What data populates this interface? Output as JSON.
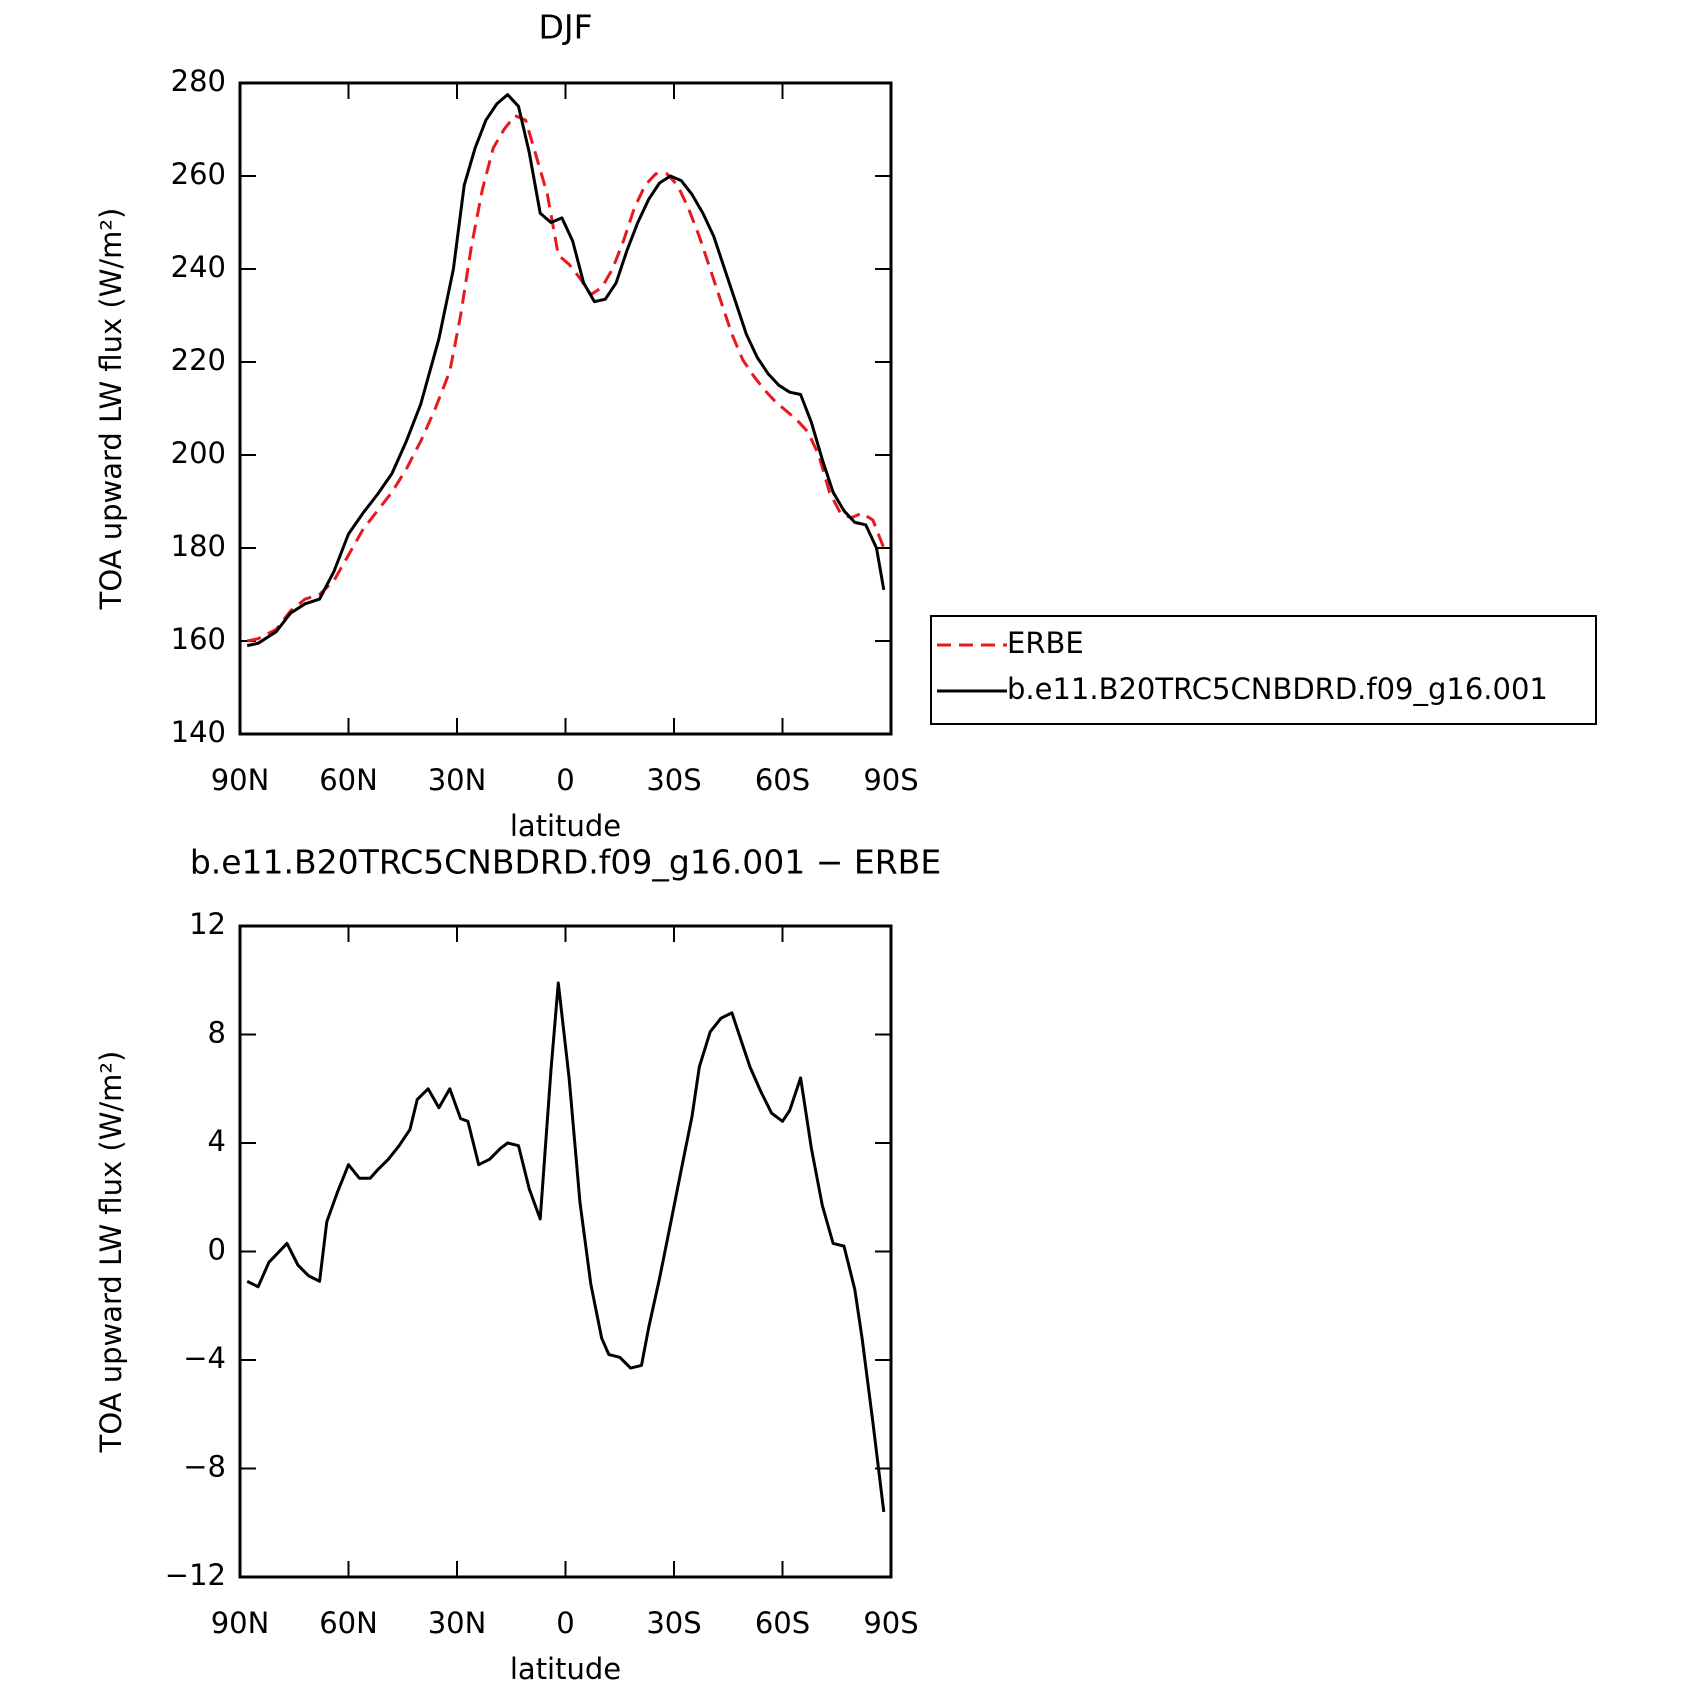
{
  "chart_data": [
    {
      "type": "line",
      "title": "DJF",
      "xlabel": "latitude",
      "ylabel": "TOA upward LW flux (W/m²)",
      "xlim": [
        90,
        -90
      ],
      "xticks": [
        {
          "value": 90,
          "label": "90N"
        },
        {
          "value": 60,
          "label": "60N"
        },
        {
          "value": 30,
          "label": "30N"
        },
        0,
        {
          "value": -30,
          "label": "30S"
        },
        {
          "value": -60,
          "label": "60S"
        },
        {
          "value": -90,
          "label": "90S"
        }
      ],
      "ylim": [
        140,
        280
      ],
      "yticks": [
        140,
        160,
        180,
        200,
        220,
        240,
        260,
        280
      ],
      "legend": "outside-right",
      "series": [
        {
          "name": "ERBE",
          "color": "#e8191c",
          "dashed": true,
          "x": [
            88,
            85,
            80,
            76,
            72,
            68,
            64,
            60,
            56,
            52,
            48,
            44,
            40,
            36,
            32,
            29,
            26,
            23,
            20,
            17,
            14,
            11,
            8,
            5,
            2,
            -1,
            -4,
            -7,
            -10,
            -13,
            -16,
            -19,
            -22,
            -25,
            -28,
            -31,
            -34,
            -37,
            -40,
            -43,
            -46,
            -49,
            -52,
            -55,
            -58,
            -61,
            -64,
            -67,
            -70,
            -73,
            -76,
            -79,
            -82,
            -85,
            -88
          ],
          "values": [
            160,
            160.5,
            162.5,
            166.5,
            169,
            170,
            173,
            178.5,
            184,
            188,
            192,
            197,
            203,
            210,
            218,
            230,
            245,
            257,
            266,
            270,
            273,
            272,
            264,
            256,
            243,
            241,
            238,
            234.5,
            236,
            240,
            246,
            253,
            258,
            260.5,
            260.5,
            258,
            253,
            247,
            240,
            233,
            226,
            220.5,
            217,
            214,
            211.5,
            209.5,
            207.5,
            205,
            200,
            192,
            187.5,
            186.5,
            187.5,
            186,
            180
          ]
        },
        {
          "name": "b.e11.B20TRC5CNBDRD.f09_g16.001",
          "color": "#000000",
          "dashed": false,
          "x": [
            88,
            85,
            80,
            76,
            72,
            68,
            64,
            60,
            56,
            52,
            48,
            44,
            40,
            35,
            31,
            28,
            25,
            22,
            19,
            16,
            13,
            10,
            7,
            4,
            1,
            -2,
            -5,
            -8,
            -11,
            -14,
            -17,
            -20,
            -23,
            -26,
            -29,
            -32,
            -35,
            -38,
            -41,
            -44,
            -47,
            -50,
            -53,
            -56,
            -59,
            -62,
            -65,
            -68,
            -71,
            -74,
            -77,
            -80,
            -83,
            -86,
            -88
          ],
          "values": [
            159,
            159.5,
            162,
            166,
            168,
            169,
            175,
            183,
            187.5,
            191.5,
            196,
            203,
            211,
            225,
            240,
            258,
            266,
            272,
            275.5,
            277.5,
            275,
            265,
            252,
            250,
            251,
            246,
            237,
            233,
            233.5,
            237,
            244,
            250,
            255,
            258.5,
            260,
            259,
            256,
            252,
            247,
            240,
            233,
            226,
            221,
            217.5,
            215,
            213.5,
            213,
            207,
            199,
            192,
            188,
            185.5,
            185,
            180,
            171
          ]
        }
      ]
    },
    {
      "type": "line",
      "title": "b.e11.B20TRC5CNBDRD.f09_g16.001 − ERBE",
      "xlabel": "latitude",
      "ylabel": "TOA upward LW flux (W/m²)",
      "xlim": [
        90,
        -90
      ],
      "xticks": [
        {
          "value": 90,
          "label": "90N"
        },
        {
          "value": 60,
          "label": "60N"
        },
        {
          "value": 30,
          "label": "30N"
        },
        0,
        {
          "value": -30,
          "label": "30S"
        },
        {
          "value": -60,
          "label": "60S"
        },
        {
          "value": -90,
          "label": "90S"
        }
      ],
      "ylim": [
        -12,
        12
      ],
      "yticks": [
        {
          "value": -12,
          "label": "−12"
        },
        {
          "value": -8,
          "label": "−8"
        },
        {
          "value": -4,
          "label": "−4"
        },
        0,
        4,
        8,
        12
      ],
      "series": [
        {
          "color": "#000000",
          "dashed": false,
          "x": [
            88,
            85,
            82,
            77,
            74,
            71,
            68,
            66,
            63,
            60,
            57,
            54,
            52,
            49,
            46,
            43,
            41,
            38,
            35,
            32,
            29,
            27,
            24,
            21,
            18,
            16,
            13,
            10,
            7,
            4,
            2,
            -1,
            -4,
            -7,
            -10,
            -12,
            -15,
            -18,
            -21,
            -23,
            -26,
            -29,
            -32,
            -35,
            -37,
            -40,
            -43,
            -46,
            -48,
            -51,
            -54,
            -57,
            -60,
            -62,
            -65,
            -68,
            -71,
            -74,
            -77,
            -80,
            -82,
            -85,
            -88
          ],
          "values": [
            -1.1,
            -1.3,
            -0.4,
            0.3,
            -0.5,
            -0.9,
            -1.1,
            1.1,
            2.2,
            3.2,
            2.7,
            2.7,
            3.0,
            3.4,
            3.9,
            4.5,
            5.6,
            6.0,
            5.3,
            6.0,
            4.9,
            4.8,
            3.2,
            3.4,
            3.8,
            4.0,
            3.9,
            2.3,
            1.2,
            6.7,
            9.9,
            6.4,
            1.8,
            -1.2,
            -3.2,
            -3.8,
            -3.9,
            -4.3,
            -4.2,
            -2.8,
            -1.0,
            1.0,
            3.0,
            5.0,
            6.8,
            8.1,
            8.6,
            8.8,
            8.0,
            6.8,
            5.9,
            5.1,
            4.8,
            5.2,
            6.4,
            3.8,
            1.7,
            0.3,
            0.2,
            -1.4,
            -3.2,
            -6.3,
            -9.6
          ]
        }
      ]
    }
  ]
}
